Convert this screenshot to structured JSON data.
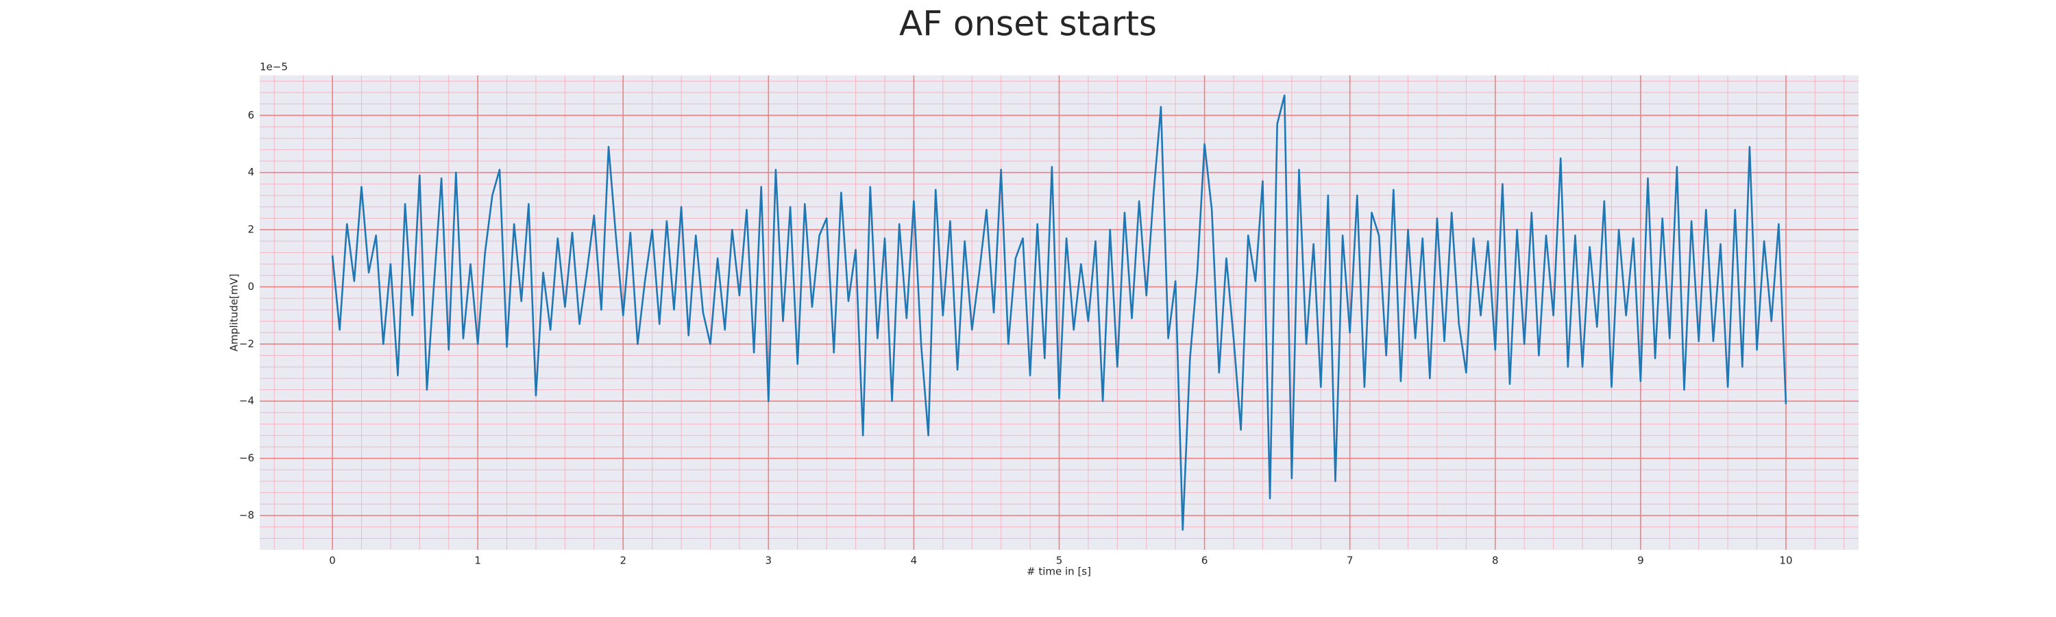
{
  "chart_data": {
    "type": "line",
    "title": "AF onset starts",
    "xlabel": "# time in [s]",
    "ylabel": "Amplitude[mV]",
    "y_offset_label": "1e−5",
    "color": "#1f77b4",
    "grid": true,
    "minor_grid": true,
    "xlim": [
      -0.5,
      10.5
    ],
    "ylim": [
      -9.2,
      7.4
    ],
    "xticks": [
      0,
      1,
      2,
      3,
      4,
      5,
      6,
      7,
      8,
      9,
      10
    ],
    "yticks": [
      {
        "value": -8,
        "label": "−8"
      },
      {
        "value": -6,
        "label": "−6"
      },
      {
        "value": -4,
        "label": "−4"
      },
      {
        "value": -2,
        "label": "−2"
      },
      0,
      2,
      4,
      6
    ],
    "x": [
      0,
      0.05,
      0.1,
      0.15,
      0.2,
      0.25,
      0.3,
      0.35,
      0.4,
      0.45,
      0.5,
      0.55,
      0.6,
      0.65,
      0.7,
      0.75,
      0.8,
      0.85,
      0.9,
      0.95,
      1,
      1.05,
      1.1,
      1.15,
      1.2,
      1.25,
      1.3,
      1.35,
      1.4,
      1.45,
      1.5,
      1.55,
      1.6,
      1.65,
      1.7,
      1.75,
      1.8,
      1.85,
      1.9,
      1.95,
      2,
      2.05,
      2.1,
      2.15,
      2.2,
      2.25,
      2.3,
      2.35,
      2.4,
      2.45,
      2.5,
      2.55,
      2.6,
      2.65,
      2.7,
      2.75,
      2.8,
      2.85,
      2.9,
      2.95,
      3,
      3.05,
      3.1,
      3.15,
      3.2,
      3.25,
      3.3,
      3.35,
      3.4,
      3.45,
      3.5,
      3.55,
      3.6,
      3.65,
      3.7,
      3.75,
      3.8,
      3.85,
      3.9,
      3.95,
      4,
      4.05,
      4.1,
      4.15,
      4.2,
      4.25,
      4.3,
      4.35,
      4.4,
      4.45,
      4.5,
      4.55,
      4.6,
      4.65,
      4.7,
      4.75,
      4.8,
      4.85,
      4.9,
      4.95,
      5,
      5.05,
      5.1,
      5.15,
      5.2,
      5.25,
      5.3,
      5.35,
      5.4,
      5.45,
      5.5,
      5.55,
      5.6,
      5.65,
      5.7,
      5.75,
      5.8,
      5.85,
      5.9,
      5.95,
      6,
      6.05,
      6.1,
      6.15,
      6.2,
      6.25,
      6.3,
      6.35,
      6.4,
      6.45,
      6.5,
      6.55,
      6.6,
      6.65,
      6.7,
      6.75,
      6.8,
      6.85,
      6.9,
      6.95,
      7,
      7.05,
      7.1,
      7.15,
      7.2,
      7.25,
      7.3,
      7.35,
      7.4,
      7.45,
      7.5,
      7.55,
      7.6,
      7.65,
      7.7,
      7.75,
      7.8,
      7.85,
      7.9,
      7.95,
      8,
      8.05,
      8.1,
      8.15,
      8.2,
      8.25,
      8.3,
      8.35,
      8.4,
      8.45,
      8.5,
      8.55,
      8.6,
      8.65,
      8.7,
      8.75,
      8.8,
      8.85,
      8.9,
      8.95,
      9,
      9.05,
      9.1,
      9.15,
      9.2,
      9.25,
      9.3,
      9.35,
      9.4,
      9.45,
      9.5,
      9.55,
      9.6,
      9.65,
      9.7,
      9.75,
      9.8,
      9.85,
      9.9,
      9.95,
      10
    ],
    "values": [
      1.1,
      -1.5,
      2.2,
      0.2,
      3.5,
      0.5,
      1.8,
      -2.0,
      0.8,
      -3.1,
      2.9,
      -1.0,
      3.9,
      -3.6,
      0.2,
      3.8,
      -2.2,
      4.0,
      -1.8,
      0.8,
      -2.0,
      1.2,
      3.2,
      4.1,
      -2.1,
      2.2,
      -0.5,
      2.9,
      -3.8,
      0.5,
      -1.5,
      1.7,
      -0.7,
      1.9,
      -1.3,
      0.5,
      2.5,
      -0.8,
      4.9,
      1.8,
      -1.0,
      1.9,
      -2.0,
      0.2,
      2.0,
      -1.3,
      2.3,
      -0.8,
      2.8,
      -1.7,
      1.8,
      -0.9,
      -2.0,
      1.0,
      -1.5,
      2.0,
      -0.3,
      2.7,
      -2.3,
      3.5,
      -4.0,
      4.1,
      -1.2,
      2.8,
      -2.7,
      2.9,
      -0.7,
      1.8,
      2.4,
      -2.3,
      3.3,
      -0.5,
      1.3,
      -5.2,
      3.5,
      -1.8,
      1.7,
      -4.0,
      2.2,
      -1.1,
      3.0,
      -2.0,
      -5.2,
      3.4,
      -1.0,
      2.3,
      -2.9,
      1.6,
      -1.5,
      0.5,
      2.7,
      -0.9,
      4.1,
      -2.0,
      1.0,
      1.7,
      -3.1,
      2.2,
      -2.5,
      4.2,
      -3.9,
      1.7,
      -1.5,
      0.8,
      -1.2,
      1.6,
      -4.0,
      2.0,
      -2.8,
      2.6,
      -1.1,
      3.0,
      -0.3,
      3.3,
      6.3,
      -1.8,
      0.2,
      -8.5,
      -2.5,
      0.5,
      5.0,
      2.7,
      -3.0,
      1.0,
      -1.8,
      -5.0,
      1.8,
      0.2,
      3.7,
      -7.4,
      5.7,
      6.7,
      -6.7,
      4.1,
      -2.0,
      1.5,
      -3.5,
      3.2,
      -6.8,
      1.8,
      -1.6,
      3.2,
      -3.5,
      2.6,
      1.8,
      -2.4,
      3.4,
      -3.3,
      2.0,
      -1.8,
      1.7,
      -3.2,
      2.4,
      -1.9,
      2.6,
      -1.3,
      -3.0,
      1.7,
      -1.0,
      1.6,
      -2.2,
      3.6,
      -3.4,
      2.0,
      -2.0,
      2.6,
      -2.4,
      1.8,
      -1.0,
      4.5,
      -2.8,
      1.8,
      -2.8,
      1.4,
      -1.4,
      3.0,
      -3.5,
      2.0,
      -1.0,
      1.7,
      -3.3,
      3.8,
      -2.5,
      2.4,
      -1.8,
      4.2,
      -3.6,
      2.3,
      -1.9,
      2.7,
      -1.9,
      1.5,
      -3.5,
      2.7,
      -2.8,
      4.9,
      -2.2,
      1.6,
      -1.2,
      2.2,
      -4.1
    ]
  }
}
